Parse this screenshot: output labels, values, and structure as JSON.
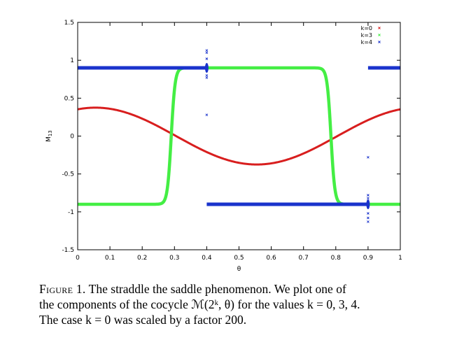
{
  "chart_data": {
    "type": "scatter",
    "xlabel": "θ",
    "ylabel_main": "M",
    "ylabel_sub": "13",
    "xlim": [
      0,
      1
    ],
    "ylim": [
      -1.5,
      1.5
    ],
    "xticks": [
      "0",
      "0.1",
      "0.2",
      "0.3",
      "0.4",
      "0.5",
      "0.6",
      "0.7",
      "0.8",
      "0.9",
      "1"
    ],
    "yticks": [
      "-1.5",
      "-1",
      "-0.5",
      "0",
      "0.5",
      "1",
      "1.5"
    ],
    "legend_placement": "top-right",
    "series": [
      {
        "name": "k=0",
        "color": "#d81e1e",
        "model": "sinusoid",
        "params": {
          "offset": 0,
          "amplitude": 0.375,
          "peak_x": 0.055
        }
      },
      {
        "name": "k=3",
        "color": "#44ee44",
        "model": "step",
        "params": {
          "low": -0.9,
          "high": 0.9,
          "up_x": 0.29,
          "down_x": 0.785,
          "edge_width": 0.006
        }
      },
      {
        "name": "k=4",
        "color": "#1a33cc",
        "model": "segments",
        "segments": [
          {
            "x": [
              0,
              0.4
            ],
            "y": 0.9
          },
          {
            "x": [
              0.4,
              0.9
            ],
            "y": -0.9
          },
          {
            "x": [
              0.9,
              1
            ],
            "y": 0.9
          }
        ],
        "points": [
          {
            "x": 0.4,
            "y": 1.13
          },
          {
            "x": 0.4,
            "y": 1.1
          },
          {
            "x": 0.4,
            "y": 1.02
          },
          {
            "x": 0.4,
            "y": 0.8
          },
          {
            "x": 0.4,
            "y": 0.77
          },
          {
            "x": 0.4,
            "y": 0.28
          },
          {
            "x": 0.9,
            "y": -0.28
          },
          {
            "x": 0.9,
            "y": -0.78
          },
          {
            "x": 0.9,
            "y": -0.82
          },
          {
            "x": 0.9,
            "y": -1.02
          },
          {
            "x": 0.9,
            "y": -1.08
          },
          {
            "x": 0.9,
            "y": -1.13
          }
        ]
      }
    ]
  },
  "caption": {
    "label": "Figure 1.",
    "line1": "The straddle the saddle phenomenon. We plot one of",
    "line2": "the components of the cocycle ℳ(2ᵏ, θ) for the values k = 0, 3, 4.",
    "line3": "The case k = 0 was scaled by a factor 200."
  }
}
